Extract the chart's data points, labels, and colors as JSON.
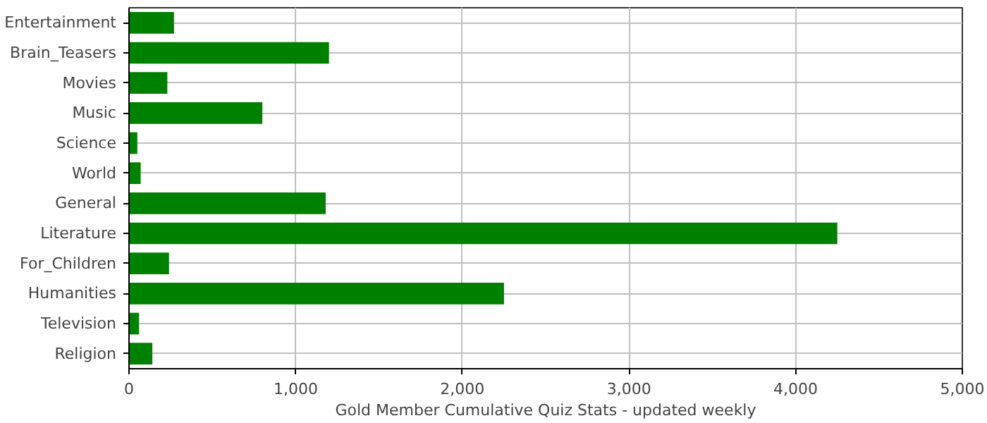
{
  "chart_data": {
    "type": "bar",
    "orientation": "horizontal",
    "xlabel": "Gold Member Cumulative Quiz Stats - updated weekly",
    "categories": [
      "Entertainment",
      "Brain_Teasers",
      "Movies",
      "Music",
      "Science",
      "World",
      "General",
      "Literature",
      "For_Children",
      "Humanities",
      "Television",
      "Religion"
    ],
    "values": [
      270,
      1200,
      230,
      800,
      50,
      70,
      1180,
      4250,
      240,
      2250,
      60,
      140
    ],
    "color": "#008000",
    "xlim": [
      0,
      5000
    ],
    "xticks": [
      {
        "value": 0,
        "label": "0"
      },
      {
        "value": 1000,
        "label": "1,000"
      },
      {
        "value": 2000,
        "label": "2,000"
      },
      {
        "value": 3000,
        "label": "3,000"
      },
      {
        "value": 4000,
        "label": "4,000"
      },
      {
        "value": 5000,
        "label": "5,000"
      }
    ],
    "grid": true
  }
}
